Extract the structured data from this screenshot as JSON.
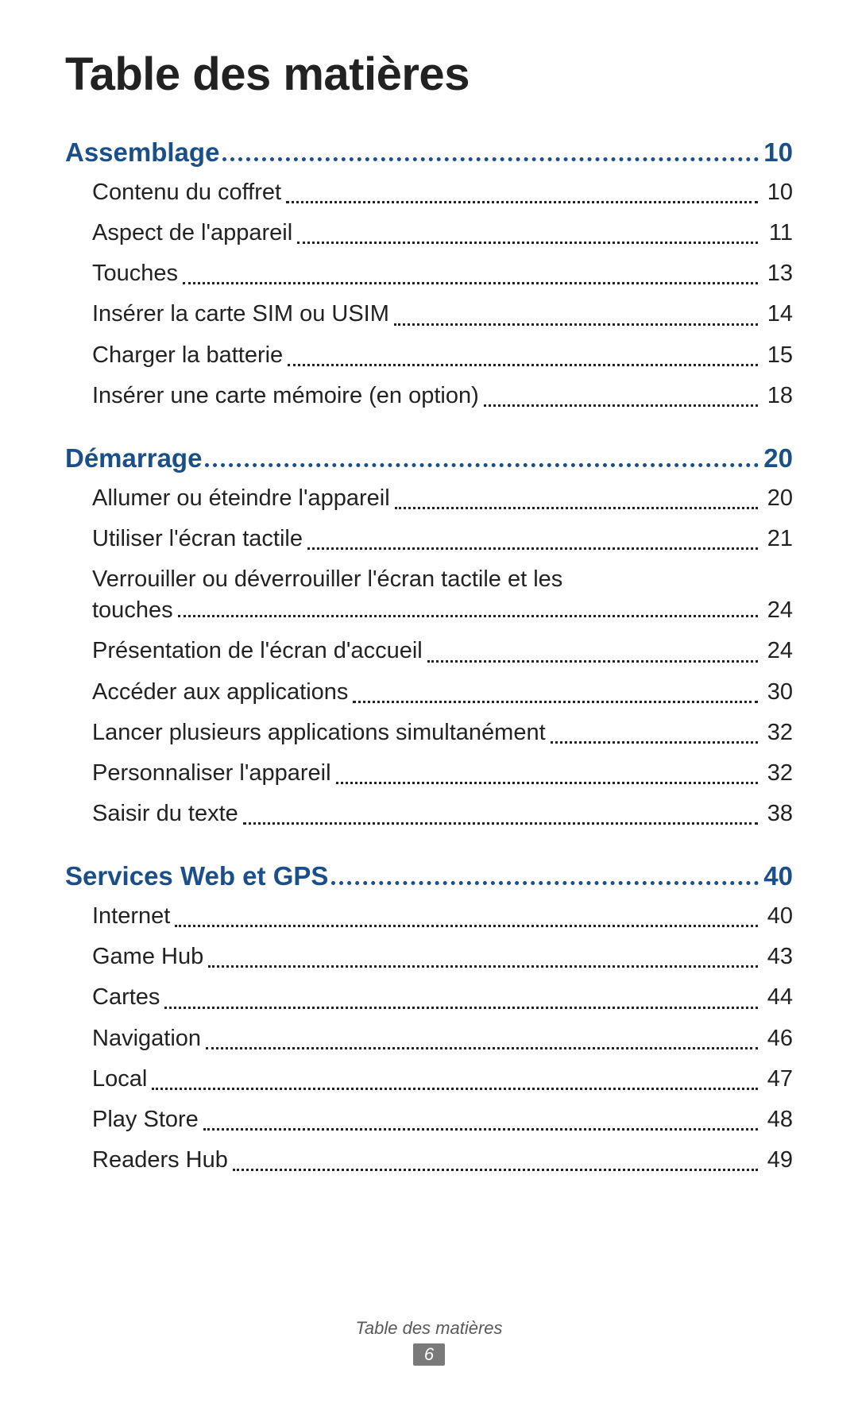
{
  "title": "Table des matières",
  "footer_label": "Table des matières",
  "footer_page": "6",
  "colors": {
    "section_fg": "#1a4f8a",
    "text_fg": "#222222",
    "footer_fg": "#595959",
    "badge_bg": "#7a7a7a",
    "badge_fg": "#ffffff"
  },
  "sections": [
    {
      "label": "Assemblage",
      "page": "10",
      "entries": [
        {
          "label": "Contenu du coffret",
          "page": "10"
        },
        {
          "label": "Aspect de l'appareil",
          "page": "11"
        },
        {
          "label": "Touches",
          "page": "13"
        },
        {
          "label": "Insérer la carte SIM ou USIM",
          "page": "14"
        },
        {
          "label": "Charger la batterie",
          "page": "15"
        },
        {
          "label": "Insérer une carte mémoire (en option)",
          "page": "18"
        }
      ]
    },
    {
      "label": "Démarrage",
      "page": "20",
      "entries": [
        {
          "label": "Allumer ou éteindre l'appareil",
          "page": "20"
        },
        {
          "label": "Utiliser l'écran tactile",
          "page": "21"
        },
        {
          "label_first": "Verrouiller ou déverrouiller l'écran tactile et les",
          "label_last": "touches",
          "page": "24",
          "multiline": true
        },
        {
          "label": "Présentation de l'écran d'accueil",
          "page": "24"
        },
        {
          "label": "Accéder aux applications",
          "page": "30"
        },
        {
          "label": "Lancer plusieurs applications simultanément",
          "page": "32"
        },
        {
          "label": "Personnaliser l'appareil",
          "page": "32"
        },
        {
          "label": "Saisir du texte",
          "page": "38"
        }
      ]
    },
    {
      "label": "Services Web et GPS",
      "page": "40",
      "entries": [
        {
          "label": "Internet",
          "page": "40"
        },
        {
          "label": "Game Hub",
          "page": "43"
        },
        {
          "label": "Cartes",
          "page": "44"
        },
        {
          "label": "Navigation",
          "page": "46"
        },
        {
          "label": "Local",
          "page": "47"
        },
        {
          "label": "Play Store",
          "page": "48"
        },
        {
          "label": "Readers Hub",
          "page": "49"
        }
      ]
    }
  ]
}
